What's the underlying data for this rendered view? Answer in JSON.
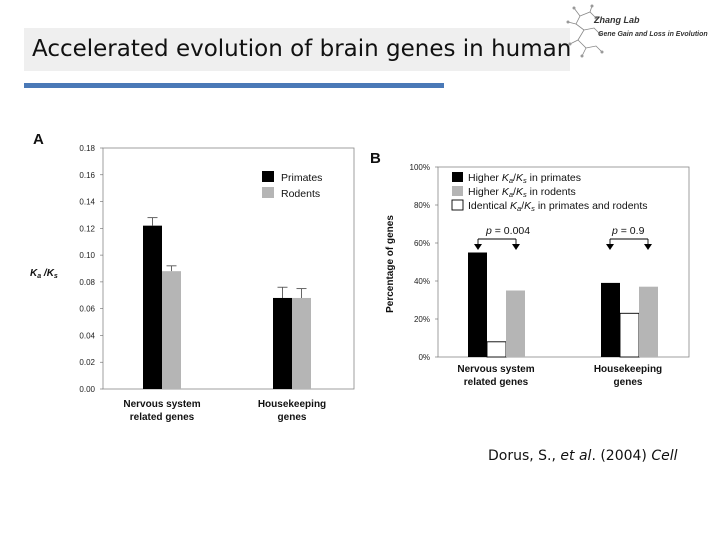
{
  "slide": {
    "title": "Accelerated evolution of brain genes in human",
    "logo": {
      "name": "Zhang Lab",
      "subtitle": "Gene Gain and Loss in Evolution"
    },
    "citation": {
      "authors": "Dorus, S., ",
      "etal": "et al",
      "year": ". (2004) ",
      "journal": "Cell"
    }
  },
  "chart_data": [
    {
      "panel": "A",
      "type": "bar",
      "ylabel": "Ka / Ks",
      "ylim": [
        0,
        0.18
      ],
      "yticks": [
        "0.00",
        "0.02",
        "0.04",
        "0.06",
        "0.08",
        "0.10",
        "0.12",
        "0.14",
        "0.16",
        "0.18"
      ],
      "categories": [
        {
          "line1": "Nervous system",
          "line2": "related genes"
        },
        {
          "line1": "Housekeeping",
          "line2": "genes"
        }
      ],
      "series": [
        {
          "name": "Primates",
          "color": "#000000",
          "values": [
            0.122,
            0.068
          ],
          "errors": [
            0.006,
            0.008
          ]
        },
        {
          "name": "Rodents",
          "color": "#b5b5b5",
          "values": [
            0.088,
            0.068
          ],
          "errors": [
            0.004,
            0.007
          ]
        }
      ],
      "legend": "top-right",
      "grid": false
    },
    {
      "panel": "B",
      "type": "bar",
      "ylabel": "Percentage of genes",
      "ylim": [
        0,
        100
      ],
      "yticks": [
        "0%",
        "20%",
        "40%",
        "60%",
        "80%",
        "100%"
      ],
      "categories": [
        {
          "line1": "Nervous system",
          "line2": "related genes",
          "pvalue": "= 0.004"
        },
        {
          "line1": "Housekeeping",
          "line2": "genes",
          "pvalue": "= 0.9"
        }
      ],
      "p_symbol": "p",
      "series": [
        {
          "name": "Higher Ka/Ks in primates",
          "color": "#000000",
          "values": [
            55,
            39
          ]
        },
        {
          "name": "Identical Ka/Ks in primates and rodents",
          "color": "#ffffff",
          "values": [
            8,
            23
          ]
        },
        {
          "name": "Higher Ka/Ks in rodents",
          "color": "#b5b5b5",
          "values": [
            35,
            37
          ]
        }
      ],
      "legend": [
        {
          "pre": "Higher ",
          "k1": "K",
          "s1": "a",
          "mid": "/",
          "k2": "K",
          "s2": "s",
          "post": " in primates",
          "color": "#000000"
        },
        {
          "pre": "Higher ",
          "k1": "K",
          "s1": "a",
          "mid": "/",
          "k2": "K",
          "s2": "s",
          "post": " in rodents",
          "color": "#b5b5b5"
        },
        {
          "pre": "Identical ",
          "k1": "K",
          "s1": "a",
          "mid": "/",
          "k2": "K",
          "s2": "s",
          "post": " in primates and rodents",
          "color": "#ffffff"
        }
      ],
      "grid": false
    }
  ]
}
